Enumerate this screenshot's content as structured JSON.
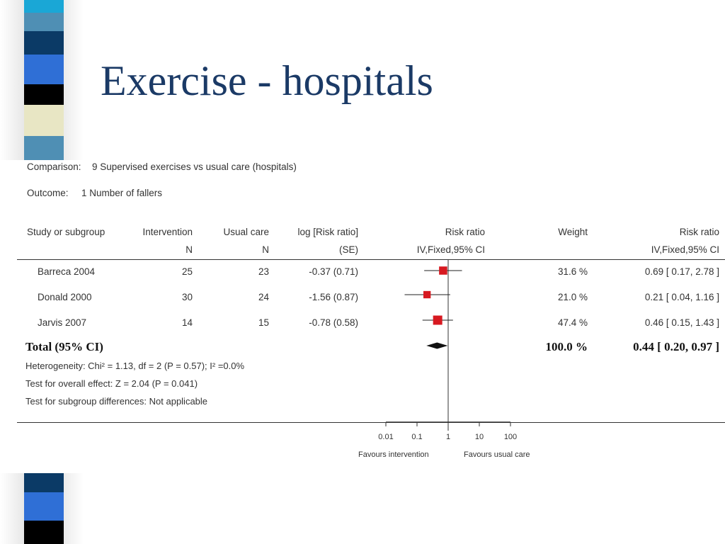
{
  "slide": {
    "title": "Exercise - hospitals"
  },
  "colors": {
    "title": "#1b3a66",
    "marker": "#d71920",
    "strip_blocks": [
      "#1aa7d6",
      "#4f8fb4",
      "#0b3a66",
      "#2f6fd6",
      "#000000",
      "#e8e6c4",
      "#4f8fb4"
    ],
    "strip_bottom_blocks": [
      "#0b3a66",
      "#2f6fd6",
      "#000000"
    ]
  },
  "meta": {
    "comparison_label": "Comparison:",
    "comparison_value": "9 Supervised exercises vs usual care (hospitals)",
    "outcome_label": "Outcome:",
    "outcome_value": "1 Number of fallers"
  },
  "headers": {
    "study": "Study or subgroup",
    "intervention": "Intervention",
    "intervention_sub": "N",
    "usual": "Usual care",
    "usual_sub": "N",
    "logrr": "log [Risk ratio]",
    "logrr_sub": "(SE)",
    "rr_plot": "Risk ratio",
    "rr_plot_sub": "IV,Fixed,95% CI",
    "weight": "Weight",
    "rr": "Risk ratio",
    "rr_sub": "IV,Fixed,95% CI"
  },
  "rows": [
    {
      "study": "Barreca 2004",
      "intervention": "25",
      "usual": "23",
      "logrr": "-0.37 (0.71)",
      "weight": "31.6 %",
      "rr": "0.69 [ 0.17, 2.78 ]"
    },
    {
      "study": "Donald 2000",
      "intervention": "30",
      "usual": "24",
      "logrr": "-1.56 (0.87)",
      "weight": "21.0 %",
      "rr": "0.21 [ 0.04, 1.16 ]"
    },
    {
      "study": "Jarvis 2007",
      "intervention": "14",
      "usual": "15",
      "logrr": "-0.78 (0.58)",
      "weight": "47.4 %",
      "rr": "0.46 [ 0.15, 1.43 ]"
    }
  ],
  "total": {
    "label": "Total (95% CI)",
    "weight": "100.0 %",
    "rr": "0.44 [ 0.20, 0.97 ]"
  },
  "stats": {
    "heterogeneity": "Heterogeneity: Chi² = 1.13, df = 2 (P = 0.57); I² =0.0%",
    "overall": "Test for overall effect: Z = 2.04 (P = 0.041)",
    "subgroup": "Test for subgroup differences: Not applicable"
  },
  "axis": {
    "ticks": [
      0.01,
      0.1,
      1,
      10,
      100
    ],
    "tick_labels": [
      "0.01",
      "0.1",
      "1",
      "10",
      "100"
    ],
    "favours_left": "Favours intervention",
    "favours_right": "Favours usual care"
  },
  "chart_data": {
    "type": "scatter",
    "scale": "log",
    "xlim": [
      0.01,
      100
    ],
    "reference_line": 1,
    "studies": [
      {
        "name": "Barreca 2004",
        "rr": 0.69,
        "ci": [
          0.17,
          2.78
        ],
        "weight": 31.6
      },
      {
        "name": "Donald 2000",
        "rr": 0.21,
        "ci": [
          0.04,
          1.16
        ],
        "weight": 21.0
      },
      {
        "name": "Jarvis 2007",
        "rr": 0.46,
        "ci": [
          0.15,
          1.43
        ],
        "weight": 47.4
      }
    ],
    "pooled": {
      "rr": 0.44,
      "ci": [
        0.2,
        0.97
      ]
    }
  }
}
